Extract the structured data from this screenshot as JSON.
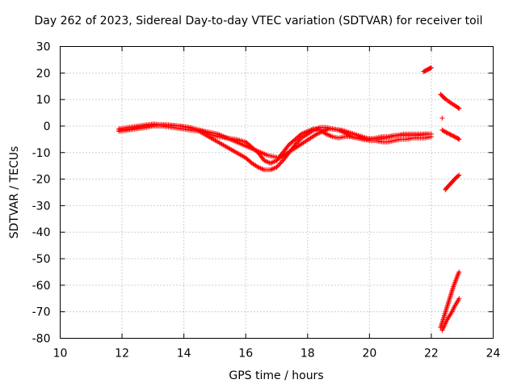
{
  "chart_data": {
    "type": "scatter",
    "title": "Day 262 of 2023, Sidereal Day-to-day VTEC variation (SDTVAR) for receiver toil",
    "xlabel": "GPS time / hours",
    "ylabel": "SDTVAR / TECUs",
    "xlim": [
      10,
      24
    ],
    "ylim": [
      -80,
      30
    ],
    "xticks": [
      "10",
      "12",
      "14",
      "16",
      "18",
      "20",
      "22",
      "24"
    ],
    "yticks": [
      "30",
      "20",
      "10",
      "0",
      "-10",
      "-20",
      "-30",
      "-40",
      "-50",
      "-60",
      "-70",
      "-80"
    ],
    "grid": true,
    "marker": "+",
    "color": "#ff0000",
    "series": [
      {
        "x": [
          11.9,
          12.2,
          12.5,
          12.8,
          13.0,
          13.3,
          13.6,
          13.9,
          14.2,
          14.5,
          14.8,
          15.1,
          15.4,
          15.7,
          16.0,
          16.2,
          16.4,
          16.6,
          16.8,
          17.0,
          17.2,
          17.4,
          17.6,
          17.8,
          18.0,
          18.2,
          18.4,
          18.6,
          18.8,
          19.0,
          19.2,
          19.4,
          19.6,
          19.8,
          20.0,
          20.2,
          20.4,
          20.6,
          20.8,
          21.0,
          21.2,
          21.4,
          21.6,
          21.8,
          22.0
        ],
        "y": [
          -1,
          -0.5,
          0,
          0.5,
          0.8,
          0.5,
          0.2,
          0,
          -0.5,
          -1.5,
          -3,
          -4,
          -4.5,
          -5,
          -6,
          -8,
          -10,
          -13,
          -14,
          -13,
          -10,
          -7,
          -5,
          -3,
          -2,
          -1,
          -1.5,
          -3,
          -4,
          -4.5,
          -4,
          -4,
          -4.5,
          -5,
          -5,
          -4.5,
          -4,
          -4,
          -3.5,
          -3.5,
          -3.5,
          -3.5,
          -3.5,
          -3,
          -3
        ]
      },
      {
        "x": [
          11.9,
          12.2,
          12.5,
          12.8,
          13.0,
          13.3,
          13.6,
          13.9,
          14.2,
          14.5,
          14.8,
          15.1,
          15.4,
          15.7,
          16.0,
          16.2,
          16.4,
          16.6,
          16.8,
          17.0,
          17.2,
          17.4,
          17.6,
          17.8,
          18.0,
          18.2,
          18.4,
          18.6,
          18.8,
          19.0,
          19.2,
          19.4,
          19.6,
          19.8,
          20.0,
          20.2,
          20.4,
          20.6,
          20.8,
          21.0,
          21.2,
          21.4,
          21.6,
          21.8,
          22.0
        ],
        "y": [
          -2,
          -1.5,
          -1,
          -0.5,
          0,
          0,
          -0.5,
          -1,
          -1.5,
          -2,
          -4,
          -6,
          -8,
          -10,
          -12,
          -14,
          -15.5,
          -16.5,
          -16.5,
          -15.5,
          -13,
          -10,
          -7,
          -4.5,
          -3,
          -1.5,
          -0.5,
          -0.5,
          -1,
          -1.5,
          -2.5,
          -4,
          -4.5,
          -5,
          -5.5,
          -5.5,
          -6,
          -6,
          -5.5,
          -5,
          -5,
          -4.5,
          -4.5,
          -4.5,
          -4
        ]
      },
      {
        "x": [
          11.9,
          12.3,
          12.7,
          13.1,
          13.5,
          13.9,
          14.3,
          14.7,
          15.1,
          15.5,
          15.9,
          16.3,
          16.7,
          17.1,
          17.5,
          17.9,
          18.3,
          18.7,
          19.1,
          19.5,
          19.9,
          20.3,
          20.7,
          21.1,
          21.5,
          21.9
        ],
        "y": [
          -1.5,
          -1,
          0,
          0.5,
          0.5,
          0,
          -1,
          -2,
          -3,
          -5,
          -7,
          -9,
          -11,
          -12,
          -9,
          -6,
          -3,
          -1,
          -1.5,
          -3,
          -4.5,
          -5,
          -4,
          -3,
          -3,
          -3
        ]
      },
      {
        "x": [
          21.75,
          21.8,
          21.85,
          21.9,
          21.95,
          22.0
        ],
        "y": [
          20.5,
          20.8,
          21.1,
          21.4,
          21.7,
          22.0
        ]
      },
      {
        "x": [
          22.3,
          22.38,
          22.46,
          22.54,
          22.62,
          22.7,
          22.78,
          22.86,
          22.9
        ],
        "y": [
          12,
          11,
          10.2,
          9.5,
          8.8,
          8.2,
          7.6,
          7.0,
          6.6
        ]
      },
      {
        "x": [
          22.35
        ],
        "y": [
          3
        ]
      },
      {
        "x": [
          22.35,
          22.45,
          22.55,
          22.65,
          22.75,
          22.85,
          22.9
        ],
        "y": [
          -1.5,
          -2.2,
          -2.8,
          -3.4,
          -4.0,
          -4.6,
          -5.0
        ]
      },
      {
        "x": [
          22.45,
          22.52,
          22.6,
          22.68,
          22.76,
          22.84,
          22.9
        ],
        "y": [
          -24,
          -23,
          -22,
          -21,
          -20,
          -19,
          -18.5
        ]
      },
      {
        "x": [
          22.3,
          22.38,
          22.46,
          22.54,
          22.62,
          22.7,
          22.78,
          22.86,
          22.9
        ],
        "y": [
          -76,
          -73,
          -70,
          -67,
          -64,
          -61,
          -58.5,
          -56,
          -55
        ]
      },
      {
        "x": [
          22.35,
          22.43,
          22.51,
          22.59,
          22.67,
          22.75,
          22.83,
          22.9
        ],
        "y": [
          -77,
          -75,
          -73,
          -71.5,
          -70,
          -68,
          -66.5,
          -65
        ]
      }
    ]
  }
}
